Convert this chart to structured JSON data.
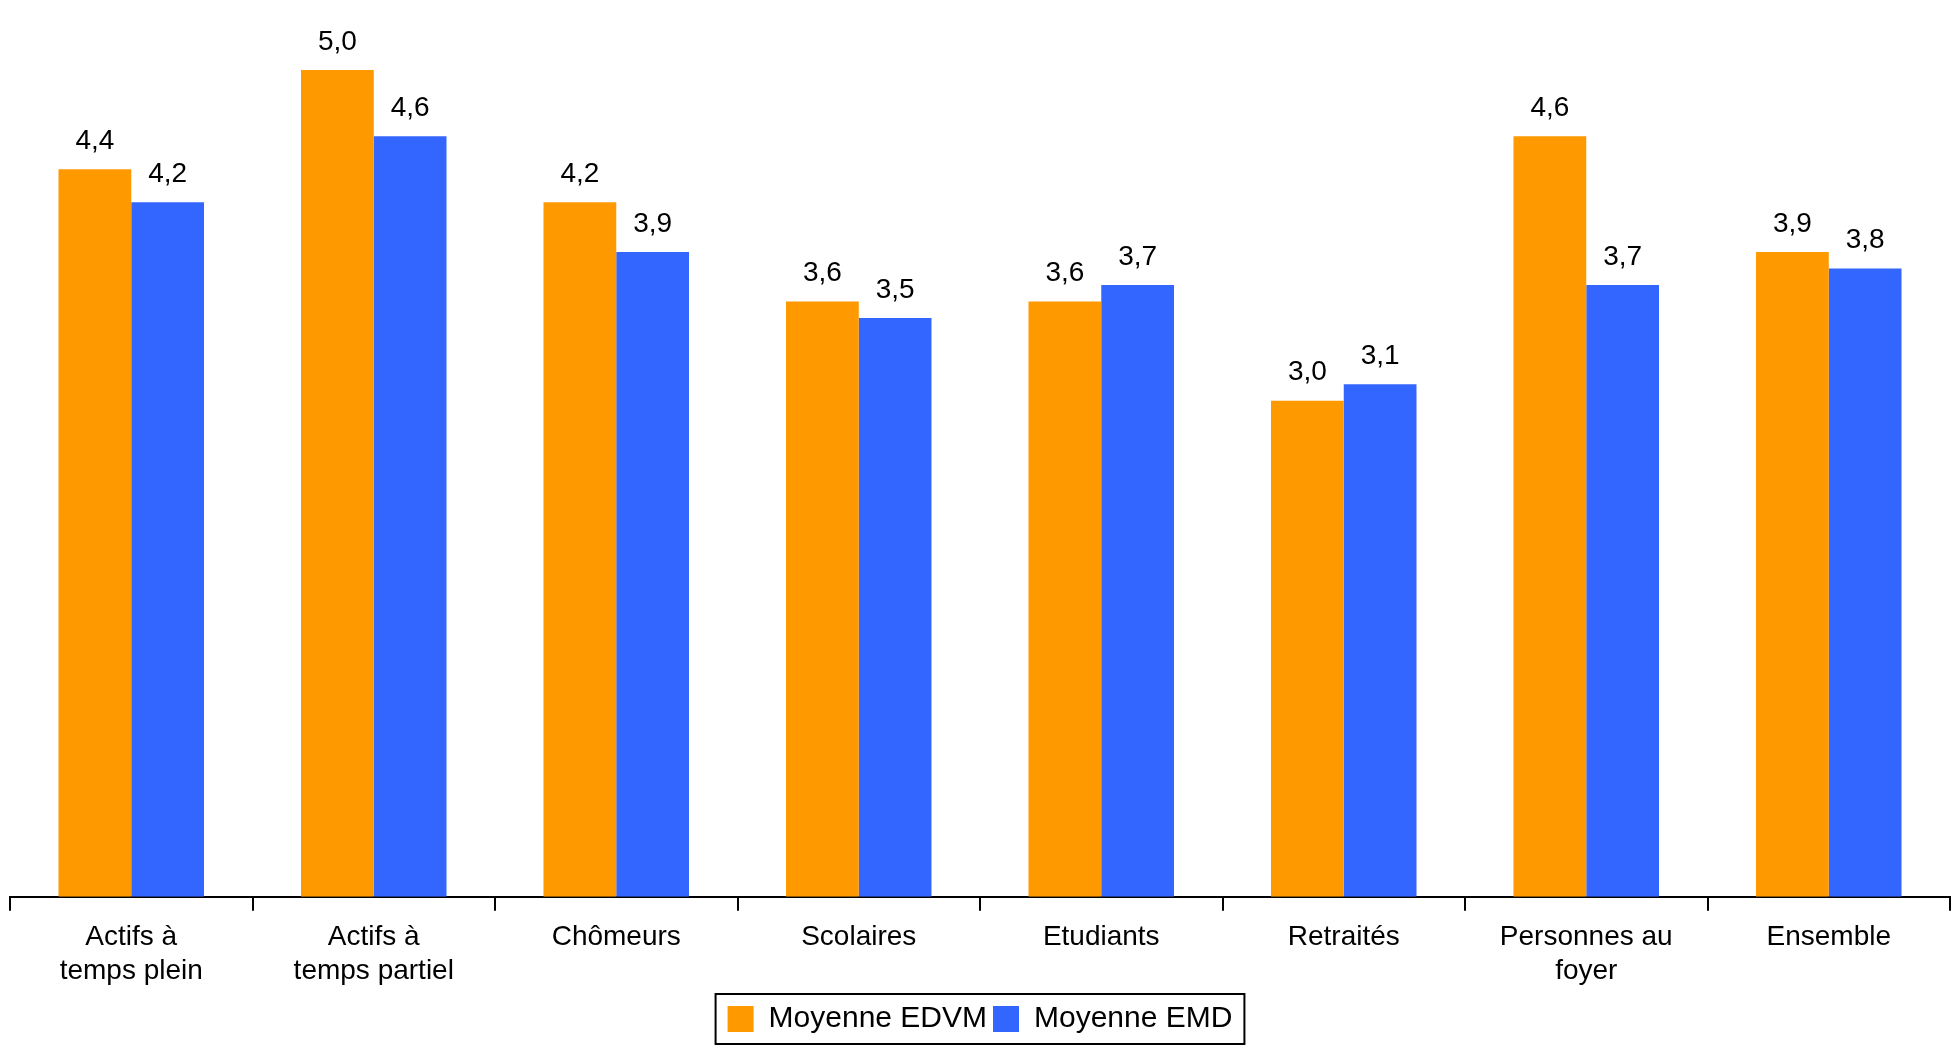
{
  "chart_data": {
    "type": "bar",
    "categories": [
      "Actifs à temps plein",
      "Actifs à temps partiel",
      "Chômeurs",
      "Scolaires",
      "Etudiants",
      "Retraités",
      "Personnes au foyer",
      "Ensemble"
    ],
    "series": [
      {
        "name": "Moyenne EDVM",
        "color": "#ff9900",
        "values": [
          4.4,
          5.0,
          4.2,
          3.6,
          3.6,
          3.0,
          4.6,
          3.9
        ],
        "value_labels": [
          "4,4",
          "5,0",
          "4,2",
          "3,6",
          "3,6",
          "3,0",
          "4,6",
          "3,9"
        ]
      },
      {
        "name": "Moyenne EMD",
        "color": "#3366ff",
        "values": [
          4.2,
          4.6,
          3.9,
          3.5,
          3.7,
          3.1,
          3.7,
          3.8
        ],
        "value_labels": [
          "4,2",
          "4,6",
          "3,9",
          "3,5",
          "3,7",
          "3,1",
          "3,7",
          "3,8"
        ]
      }
    ],
    "grid": false,
    "legend": "bottom"
  }
}
